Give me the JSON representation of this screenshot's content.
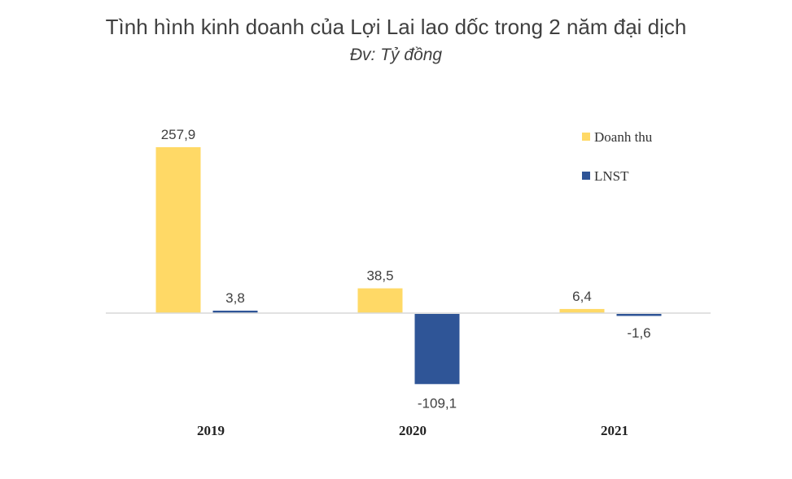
{
  "chart_data": {
    "type": "bar",
    "title": "Tình hình kinh doanh của Lợi Lai lao dốc trong 2 năm đại dịch",
    "subtitle": "Đv: Tỷ đồng",
    "categories": [
      "2019",
      "2020",
      "2021"
    ],
    "series": [
      {
        "name": "Doanh thu",
        "color": "#FFD966",
        "values": [
          257.9,
          38.5,
          6.4
        ],
        "labels": [
          "257,9",
          "38,5",
          "6,4"
        ]
      },
      {
        "name": "LNST",
        "color": "#2F5597",
        "values": [
          3.8,
          -109.1,
          -1.6
        ],
        "labels": [
          "3,8",
          "-109,1",
          "-1,6"
        ]
      }
    ],
    "ylim": [
      -109.1,
      257.9
    ],
    "grid": false,
    "legend": "top-right",
    "xlabel": "",
    "ylabel": ""
  }
}
